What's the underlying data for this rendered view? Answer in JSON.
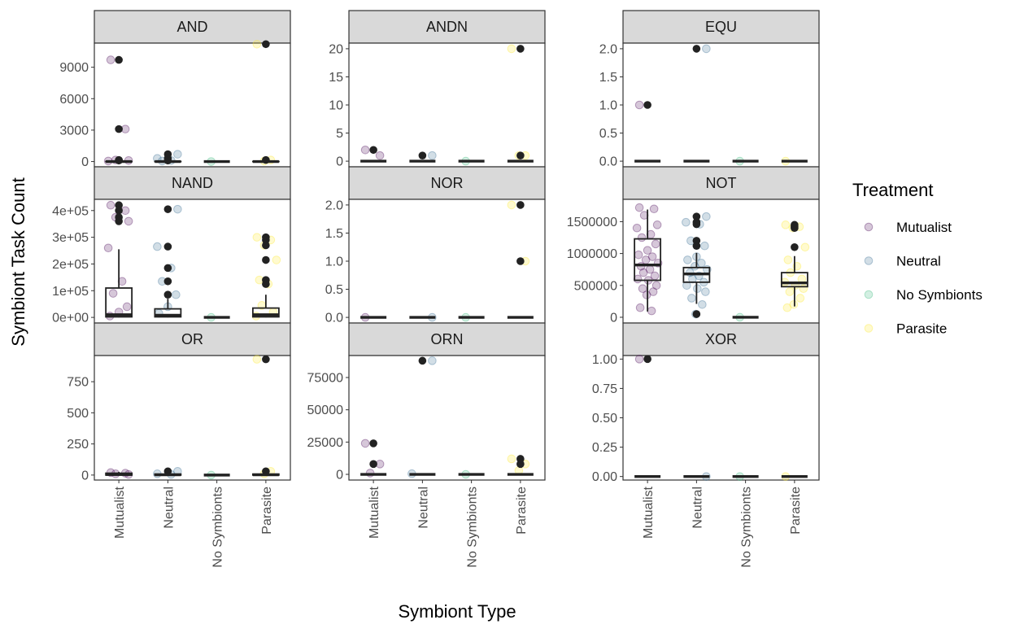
{
  "chart_data": {
    "type": "box",
    "title": "",
    "xlabel": "Symbiont Type",
    "ylabel": "Symbiont Task Count",
    "categories": [
      "Mutualist",
      "Neutral",
      "No Symbionts",
      "Parasite"
    ],
    "legend": {
      "title": "Treatment",
      "placement": "right",
      "entries": [
        {
          "name": "Mutualist",
          "color": "#440154"
        },
        {
          "name": "Neutral",
          "color": "#31688E"
        },
        {
          "name": "No Symbionts",
          "color": "#35B779"
        },
        {
          "name": "Parasite",
          "color": "#FDE725"
        }
      ]
    },
    "grid": false,
    "panels": [
      {
        "name": "AND",
        "ylim": [
          -500,
          11300
        ],
        "yticks": [
          {
            "v": 0,
            "l": "0"
          },
          {
            "v": 3000,
            "l": "3000"
          },
          {
            "v": 6000,
            "l": "6000"
          },
          {
            "v": 9000,
            "l": "9000"
          }
        ],
        "boxes": [
          {
            "q1": 0,
            "med": 0,
            "q3": 5,
            "lo": 0,
            "hi": 10,
            "out": [
              9700,
              3100,
              150,
              100
            ],
            "pts": [
              9700,
              3100,
              150,
              100,
              50
            ]
          },
          {
            "q1": 0,
            "med": 0,
            "q3": 5,
            "lo": 0,
            "hi": 10,
            "out": [
              700,
              300,
              100
            ],
            "pts": [
              700,
              300,
              100,
              50
            ]
          },
          {
            "q1": 0,
            "med": 0,
            "q3": 0,
            "lo": 0,
            "hi": 0,
            "out": [],
            "pts": [
              0
            ]
          },
          {
            "q1": 0,
            "med": 0,
            "q3": 5,
            "lo": 0,
            "hi": 10,
            "out": [
              11200,
              150
            ],
            "pts": [
              11200,
              150,
              50
            ]
          }
        ]
      },
      {
        "name": "ANDN",
        "ylim": [
          -1,
          21
        ],
        "yticks": [
          {
            "v": 0,
            "l": "0"
          },
          {
            "v": 5,
            "l": "5"
          },
          {
            "v": 10,
            "l": "10"
          },
          {
            "v": 15,
            "l": "15"
          },
          {
            "v": 20,
            "l": "20"
          }
        ],
        "boxes": [
          {
            "q1": 0,
            "med": 0,
            "q3": 0,
            "lo": 0,
            "hi": 0,
            "out": [
              2
            ],
            "pts": [
              2,
              1
            ]
          },
          {
            "q1": 0,
            "med": 0,
            "q3": 0,
            "lo": 0,
            "hi": 0,
            "out": [
              1
            ],
            "pts": [
              1
            ]
          },
          {
            "q1": 0,
            "med": 0,
            "q3": 0,
            "lo": 0,
            "hi": 0,
            "out": [],
            "pts": [
              0
            ]
          },
          {
            "q1": 0,
            "med": 0,
            "q3": 0,
            "lo": 0,
            "hi": 0,
            "out": [
              20,
              1
            ],
            "pts": [
              20,
              1,
              1
            ]
          }
        ]
      },
      {
        "name": "EQU",
        "ylim": [
          -0.1,
          2.1
        ],
        "yticks": [
          {
            "v": 0,
            "l": "0.0"
          },
          {
            "v": 0.5,
            "l": "0.5"
          },
          {
            "v": 1,
            "l": "1.0"
          },
          {
            "v": 1.5,
            "l": "1.5"
          },
          {
            "v": 2,
            "l": "2.0"
          }
        ],
        "boxes": [
          {
            "q1": 0,
            "med": 0,
            "q3": 0,
            "lo": 0,
            "hi": 0,
            "out": [
              1
            ],
            "pts": [
              1
            ]
          },
          {
            "q1": 0,
            "med": 0,
            "q3": 0,
            "lo": 0,
            "hi": 0,
            "out": [
              2
            ],
            "pts": [
              2
            ]
          },
          {
            "q1": 0,
            "med": 0,
            "q3": 0,
            "lo": 0,
            "hi": 0,
            "out": [],
            "pts": [
              0
            ]
          },
          {
            "q1": 0,
            "med": 0,
            "q3": 0,
            "lo": 0,
            "hi": 0,
            "out": [],
            "pts": [
              0
            ]
          }
        ]
      },
      {
        "name": "NAND",
        "ylim": [
          -21000,
          442000
        ],
        "yticks": [
          {
            "v": 0,
            "l": "0e+00"
          },
          {
            "v": 100000,
            "l": "1e+05"
          },
          {
            "v": 200000,
            "l": "2e+05"
          },
          {
            "v": 300000,
            "l": "3e+05"
          },
          {
            "v": 400000,
            "l": "4e+05"
          }
        ],
        "boxes": [
          {
            "q1": 2000,
            "med": 10000,
            "q3": 110000,
            "lo": 0,
            "hi": 255000,
            "out": [
              420000,
              400000,
              375000,
              360000
            ],
            "pts": [
              420000,
              400000,
              375000,
              360000,
              260000,
              135000,
              90000,
              40000,
              20000,
              5000
            ]
          },
          {
            "q1": 2000,
            "med": 8000,
            "q3": 32000,
            "lo": 0,
            "hi": 70000,
            "out": [
              405000,
              265000,
              185000,
              135000,
              85000
            ],
            "pts": [
              405000,
              265000,
              185000,
              135000,
              85000,
              40000,
              15000
            ]
          },
          {
            "q1": 0,
            "med": 0,
            "q3": 0,
            "lo": 0,
            "hi": 0,
            "out": [],
            "pts": [
              0
            ]
          },
          {
            "q1": 2000,
            "med": 10000,
            "q3": 35000,
            "lo": 0,
            "hi": 85000,
            "out": [
              300000,
              290000,
              270000,
              215000,
              140000,
              125000
            ],
            "pts": [
              300000,
              290000,
              270000,
              215000,
              140000,
              125000,
              45000,
              20000,
              5000
            ]
          }
        ]
      },
      {
        "name": "NOR",
        "ylim": [
          -0.1,
          2.1
        ],
        "yticks": [
          {
            "v": 0,
            "l": "0.0"
          },
          {
            "v": 0.5,
            "l": "0.5"
          },
          {
            "v": 1,
            "l": "1.0"
          },
          {
            "v": 1.5,
            "l": "1.5"
          },
          {
            "v": 2,
            "l": "2.0"
          }
        ],
        "boxes": [
          {
            "q1": 0,
            "med": 0,
            "q3": 0,
            "lo": 0,
            "hi": 0,
            "out": [],
            "pts": [
              0
            ]
          },
          {
            "q1": 0,
            "med": 0,
            "q3": 0,
            "lo": 0,
            "hi": 0,
            "out": [],
            "pts": [
              0
            ]
          },
          {
            "q1": 0,
            "med": 0,
            "q3": 0,
            "lo": 0,
            "hi": 0,
            "out": [],
            "pts": [
              0
            ]
          },
          {
            "q1": 0,
            "med": 0,
            "q3": 0,
            "lo": 0,
            "hi": 0,
            "out": [
              2,
              1
            ],
            "pts": [
              2,
              1
            ]
          }
        ]
      },
      {
        "name": "NOT",
        "ylim": [
          -90000,
          1850000
        ],
        "yticks": [
          {
            "v": 0,
            "l": "0"
          },
          {
            "v": 500000,
            "l": "500000"
          },
          {
            "v": 1000000,
            "l": "1000000"
          },
          {
            "v": 1500000,
            "l": "1500000"
          }
        ],
        "boxes": [
          {
            "q1": 580000,
            "med": 820000,
            "q3": 1230000,
            "lo": 90000,
            "hi": 1690000,
            "out": [],
            "pts": [
              1720000,
              1700000,
              1600000,
              1450000,
              1400000,
              1300000,
              1250000,
              1150000,
              1050000,
              980000,
              950000,
              900000,
              850000,
              800000,
              750000,
              700000,
              650000,
              600000,
              580000,
              500000,
              450000,
              400000,
              350000,
              150000,
              100000
            ]
          },
          {
            "q1": 550000,
            "med": 680000,
            "q3": 780000,
            "lo": 210000,
            "hi": 1010000,
            "out": [
              1580000,
              1490000,
              1460000,
              1200000,
              1120000,
              50000
            ],
            "pts": [
              1580000,
              1490000,
              1460000,
              1200000,
              1120000,
              950000,
              900000,
              850000,
              800000,
              750000,
              700000,
              650000,
              600000,
              550000,
              500000,
              450000,
              400000,
              300000,
              200000,
              50000
            ]
          },
          {
            "q1": 0,
            "med": 0,
            "q3": 0,
            "lo": 0,
            "hi": 0,
            "out": [],
            "pts": [
              0
            ]
          },
          {
            "q1": 480000,
            "med": 540000,
            "q3": 700000,
            "lo": 170000,
            "hi": 960000,
            "out": [
              1450000,
              1420000,
              1400000,
              1100000
            ],
            "pts": [
              1450000,
              1420000,
              1400000,
              1100000,
              900000,
              800000,
              700000,
              600000,
              550000,
              500000,
              450000,
              400000,
              300000,
              200000,
              150000
            ]
          }
        ]
      },
      {
        "name": "OR",
        "ylim": [
          -40,
          960
        ],
        "yticks": [
          {
            "v": 0,
            "l": "0"
          },
          {
            "v": 250,
            "l": "250"
          },
          {
            "v": 500,
            "l": "500"
          },
          {
            "v": 750,
            "l": "750"
          }
        ],
        "boxes": [
          {
            "q1": 0,
            "med": 5,
            "q3": 15,
            "lo": 0,
            "hi": 25,
            "out": [],
            "pts": [
              20,
              15,
              10,
              5
            ]
          },
          {
            "q1": 0,
            "med": 2,
            "q3": 8,
            "lo": 0,
            "hi": 15,
            "out": [
              30
            ],
            "pts": [
              30,
              10,
              5
            ]
          },
          {
            "q1": 0,
            "med": 0,
            "q3": 0,
            "lo": 0,
            "hi": 0,
            "out": [],
            "pts": [
              0
            ]
          },
          {
            "q1": 0,
            "med": 2,
            "q3": 8,
            "lo": 0,
            "hi": 15,
            "out": [
              930,
              30
            ],
            "pts": [
              930,
              30,
              10
            ]
          }
        ]
      },
      {
        "name": "ORN",
        "ylim": [
          -4400,
          92000
        ],
        "yticks": [
          {
            "v": 0,
            "l": "0"
          },
          {
            "v": 25000,
            "l": "25000"
          },
          {
            "v": 50000,
            "l": "50000"
          },
          {
            "v": 75000,
            "l": "75000"
          }
        ],
        "boxes": [
          {
            "q1": 0,
            "med": 0,
            "q3": 0,
            "lo": 0,
            "hi": 0,
            "out": [
              24000,
              8000
            ],
            "pts": [
              24000,
              8000,
              1000
            ]
          },
          {
            "q1": 0,
            "med": 0,
            "q3": 0,
            "lo": 0,
            "hi": 0,
            "out": [
              88000
            ],
            "pts": [
              88000,
              500
            ]
          },
          {
            "q1": 0,
            "med": 0,
            "q3": 0,
            "lo": 0,
            "hi": 0,
            "out": [],
            "pts": [
              0
            ]
          },
          {
            "q1": 0,
            "med": 0,
            "q3": 0,
            "lo": 0,
            "hi": 0,
            "out": [
              12000,
              8000
            ],
            "pts": [
              12000,
              8000,
              3000
            ]
          }
        ]
      },
      {
        "name": "XOR",
        "ylim": [
          -0.03,
          1.03
        ],
        "yticks": [
          {
            "v": 0,
            "l": "0.00"
          },
          {
            "v": 0.25,
            "l": "0.25"
          },
          {
            "v": 0.5,
            "l": "0.50"
          },
          {
            "v": 0.75,
            "l": "0.75"
          },
          {
            "v": 1,
            "l": "1.00"
          }
        ],
        "boxes": [
          {
            "q1": 0,
            "med": 0,
            "q3": 0,
            "lo": 0,
            "hi": 0,
            "out": [
              1
            ],
            "pts": [
              1
            ]
          },
          {
            "q1": 0,
            "med": 0,
            "q3": 0,
            "lo": 0,
            "hi": 0,
            "out": [],
            "pts": [
              0
            ]
          },
          {
            "q1": 0,
            "med": 0,
            "q3": 0,
            "lo": 0,
            "hi": 0,
            "out": [],
            "pts": [
              0
            ]
          },
          {
            "q1": 0,
            "med": 0,
            "q3": 0,
            "lo": 0,
            "hi": 0,
            "out": [],
            "pts": [
              0
            ]
          }
        ]
      }
    ]
  }
}
